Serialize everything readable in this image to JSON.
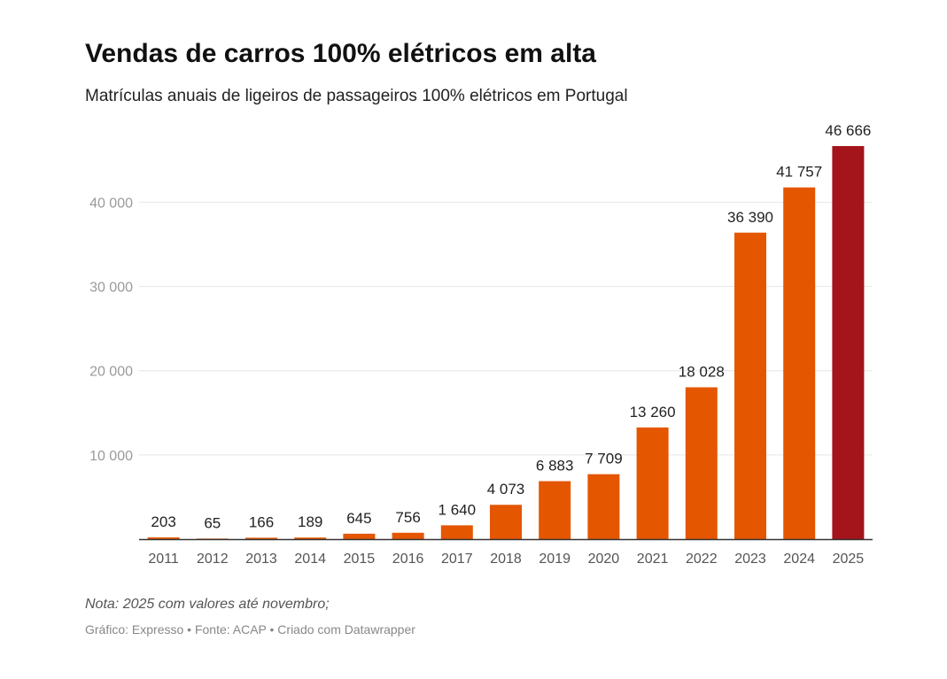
{
  "chart_data": {
    "type": "bar",
    "title": "Vendas de carros 100% elétricos em alta",
    "subtitle": "Matrículas anuais de ligeiros de passageiros 100% elétricos em Portugal",
    "xlabel": "",
    "ylabel": "",
    "categories": [
      "2011",
      "2012",
      "2013",
      "2014",
      "2015",
      "2016",
      "2017",
      "2018",
      "2019",
      "2020",
      "2021",
      "2022",
      "2023",
      "2024",
      "2025"
    ],
    "values": [
      203,
      65,
      166,
      189,
      645,
      756,
      1640,
      4073,
      6883,
      7709,
      13260,
      18028,
      36390,
      41757,
      46666
    ],
    "value_labels": [
      "203",
      "65",
      "166",
      "189",
      "645",
      "756",
      "1 640",
      "4 073",
      "6 883",
      "7 709",
      "13 260",
      "18 028",
      "36 390",
      "41 757",
      "46 666"
    ],
    "highlight_index": 14,
    "yticks": [
      10000,
      20000,
      30000,
      40000
    ],
    "ytick_labels": [
      "10 000",
      "20 000",
      "30 000",
      "40 000"
    ],
    "ylim": [
      0,
      46666
    ],
    "grid": true,
    "legend": "none",
    "colors": {
      "bar": "#e45600",
      "highlight": "#a3141b",
      "grid": "#e6e6e6",
      "axis": "#333333",
      "tick_label": "#9a9a9a",
      "category_label": "#555555",
      "value_label": "#222222"
    }
  },
  "footer": {
    "note": "Nota: 2025 com valores até novembro;",
    "credits": "Gráfico: Expresso • Fonte: ACAP • Criado com Datawrapper"
  }
}
